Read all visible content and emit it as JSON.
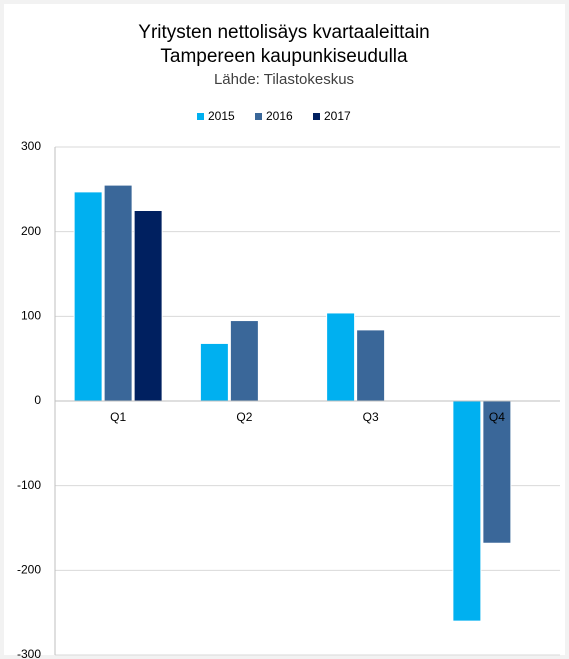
{
  "chart_data": {
    "type": "bar",
    "title": [
      "Yritysten nettolisäys kvartaaleittain",
      "Tampereen kaupunkiseudulla"
    ],
    "subtitle": "Lähde: Tilastokeskus",
    "categories": [
      "Q1",
      "Q2",
      "Q3",
      "Q4"
    ],
    "series": [
      {
        "name": "2015",
        "color": "#00b0f0",
        "values": [
          247,
          68,
          104,
          -260
        ]
      },
      {
        "name": "2016",
        "color": "#3a6799",
        "values": [
          255,
          95,
          84,
          -168
        ]
      },
      {
        "name": "2017",
        "color": "#002060",
        "values": [
          225,
          null,
          null,
          null
        ]
      }
    ],
    "ylim": [
      -300,
      300
    ],
    "yticks": [
      -300,
      -200,
      -100,
      0,
      100,
      200,
      300
    ],
    "grid": true,
    "legend": "top"
  }
}
